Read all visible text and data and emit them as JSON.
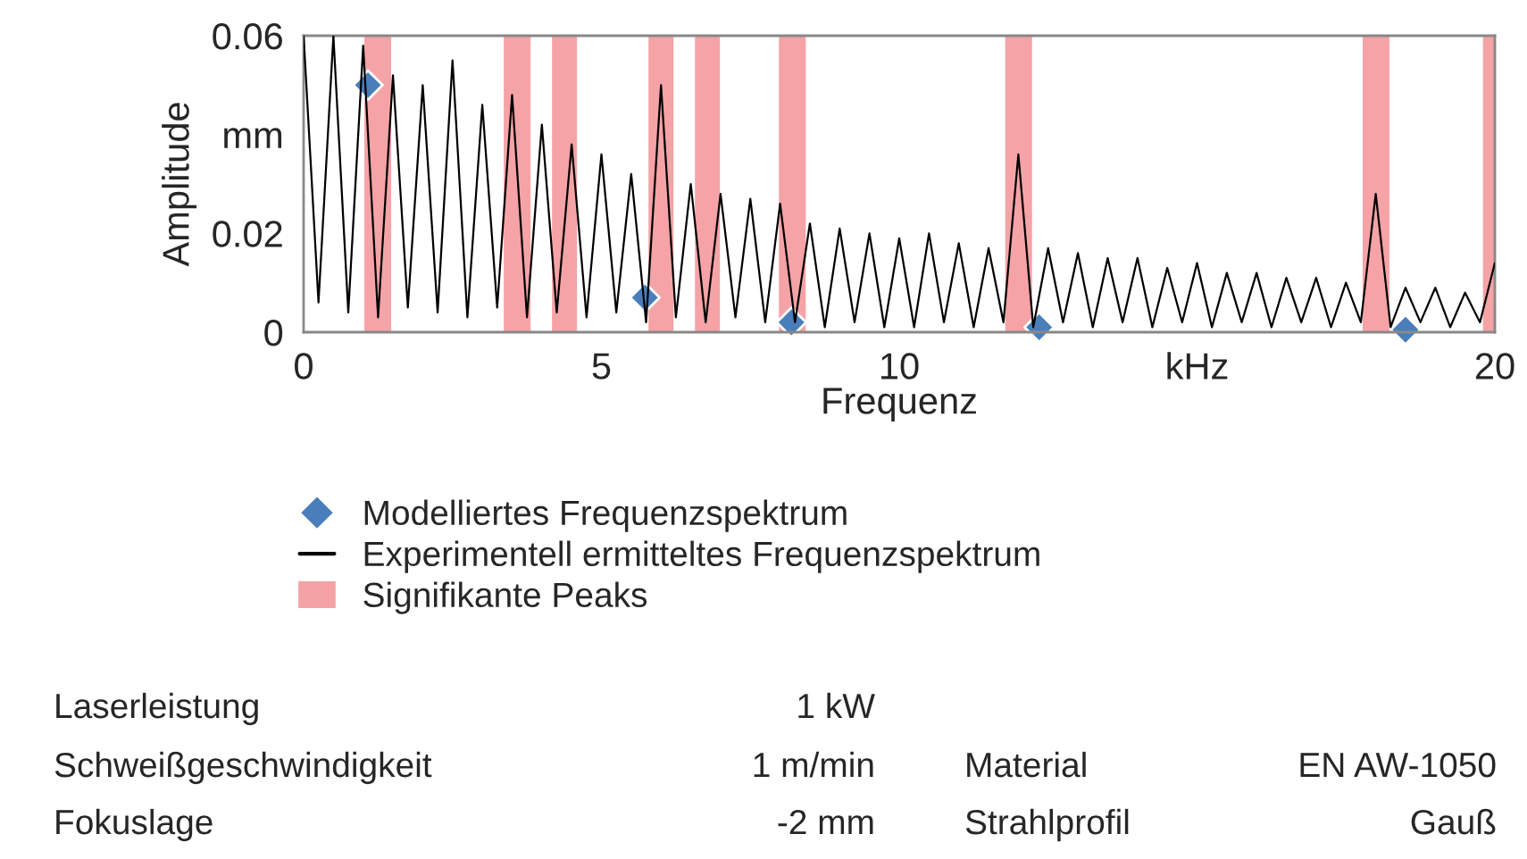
{
  "chart_data": {
    "type": "line",
    "xlabel": "Frequenz",
    "ylabel": "Amplitude",
    "xlim": [
      0,
      20
    ],
    "xticks": [
      0,
      5,
      10,
      {
        "value": 15,
        "label": "kHz"
      },
      20
    ],
    "ylim": [
      0,
      0.06
    ],
    "yticks": [
      0,
      0.02,
      {
        "value": 0.04,
        "label": "mm"
      },
      0.06
    ],
    "grid": false,
    "legend": "bottom",
    "series": [
      {
        "name": "Modelliertes Frequenzspektrum",
        "type": "scatter",
        "marker": "diamond",
        "color": "#4a7ebb",
        "x": [
          1.08,
          5.73,
          8.19,
          12.35,
          18.5
        ],
        "values": [
          0.05,
          0.007,
          0.002,
          0.001,
          0.0005
        ]
      },
      {
        "name": "Experimentell ermitteltes Frequenzspektrum",
        "color": "#000000",
        "x": [
          0,
          0.25,
          0.5,
          0.75,
          1,
          1.25,
          1.5,
          1.75,
          2,
          2.25,
          2.5,
          2.75,
          3,
          3.25,
          3.5,
          3.75,
          4,
          4.25,
          4.5,
          4.75,
          5,
          5.25,
          5.5,
          5.75,
          6,
          6.25,
          6.5,
          6.75,
          7,
          7.25,
          7.5,
          7.75,
          8,
          8.25,
          8.5,
          8.75,
          9,
          9.25,
          9.5,
          9.75,
          10,
          10.25,
          10.5,
          10.75,
          11,
          11.25,
          11.5,
          11.75,
          12,
          12.25,
          12.5,
          12.75,
          13,
          13.25,
          13.5,
          13.75,
          14,
          14.25,
          14.5,
          14.75,
          15,
          15.25,
          15.5,
          15.75,
          16,
          16.25,
          16.5,
          16.75,
          17,
          17.25,
          17.5,
          17.75,
          18,
          18.25,
          18.5,
          18.75,
          19,
          19.25,
          19.5,
          19.75,
          20
        ],
        "values": [
          0.06,
          0.006,
          0.06,
          0.004,
          0.058,
          0.003,
          0.052,
          0.005,
          0.05,
          0.004,
          0.055,
          0.003,
          0.046,
          0.005,
          0.048,
          0.003,
          0.042,
          0.004,
          0.038,
          0.003,
          0.036,
          0.004,
          0.032,
          0.002,
          0.05,
          0.003,
          0.03,
          0.002,
          0.028,
          0.003,
          0.027,
          0.002,
          0.026,
          0.002,
          0.022,
          0.001,
          0.021,
          0.002,
          0.02,
          0.001,
          0.019,
          0.001,
          0.02,
          0.002,
          0.018,
          0.001,
          0.017,
          0.002,
          0.036,
          0.001,
          0.017,
          0.002,
          0.016,
          0.001,
          0.015,
          0.002,
          0.015,
          0.001,
          0.013,
          0.002,
          0.014,
          0.001,
          0.012,
          0.002,
          0.012,
          0.001,
          0.011,
          0.002,
          0.011,
          0.001,
          0.01,
          0.002,
          0.028,
          0.001,
          0.009,
          0.002,
          0.009,
          0.001,
          0.008,
          0.002,
          0.014
        ]
      }
    ],
    "bands": [
      {
        "axis": "x",
        "from": 1.02,
        "to": 1.47,
        "label": "Signifikante Peaks",
        "color": "#e8323a"
      },
      {
        "axis": "x",
        "from": 3.36,
        "to": 3.81,
        "color": "#e8323a"
      },
      {
        "axis": "x",
        "from": 4.17,
        "to": 4.59,
        "color": "#e8323a"
      },
      {
        "axis": "x",
        "from": 5.79,
        "to": 6.21,
        "color": "#e8323a"
      },
      {
        "axis": "x",
        "from": 6.57,
        "to": 6.99,
        "color": "#e8323a"
      },
      {
        "axis": "x",
        "from": 7.98,
        "to": 8.43,
        "color": "#e8323a"
      },
      {
        "axis": "x",
        "from": 11.78,
        "to": 12.23,
        "color": "#e8323a"
      },
      {
        "axis": "x",
        "from": 17.78,
        "to": 18.23,
        "color": "#e8323a"
      },
      {
        "axis": "x",
        "from": 19.8,
        "to": 20,
        "color": "#e8323a"
      }
    ],
    "annotations": [
      "Laserleistung",
      "1 kW",
      "Schweißgeschwindigkeit",
      "1 m/min",
      "Material",
      "EN AW-1050",
      "Fokuslage",
      "-2 mm",
      "Strahlprofil",
      "Gauß"
    ]
  }
}
